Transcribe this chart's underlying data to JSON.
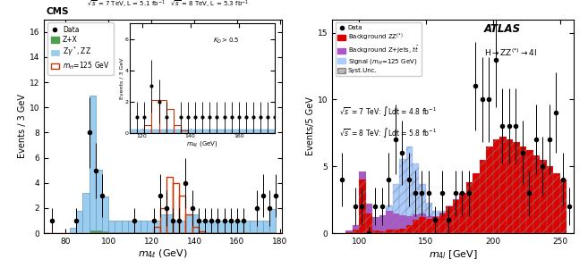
{
  "left_plot": {
    "ylabel": "Events / 3 GeV",
    "xlim": [
      70,
      181
    ],
    "ylim": [
      0,
      17
    ],
    "bin_edges": [
      70,
      73,
      76,
      79,
      82,
      85,
      88,
      91,
      94,
      97,
      100,
      103,
      106,
      109,
      112,
      115,
      118,
      121,
      124,
      127,
      130,
      133,
      136,
      139,
      142,
      145,
      148,
      151,
      154,
      157,
      160,
      163,
      166,
      169,
      172,
      175,
      178,
      181
    ],
    "zx_vals": [
      0,
      0,
      0,
      0,
      0,
      0,
      0,
      0.25,
      0.25,
      0.15,
      0.1,
      0.1,
      0.1,
      0.1,
      0.1,
      0.1,
      0.1,
      0.1,
      0.1,
      0.1,
      0.1,
      0.1,
      0.1,
      0.1,
      0.1,
      0.1,
      0.1,
      0.1,
      0.1,
      0.1,
      0.1,
      0.1,
      0.1,
      0.1,
      0.1,
      0.1,
      0.0
    ],
    "zz_vals": [
      0,
      0,
      0,
      0,
      0.4,
      1.8,
      3.2,
      10.7,
      4.8,
      2.8,
      0.9,
      0.9,
      0.9,
      0.9,
      0.9,
      0.9,
      0.9,
      0.9,
      1.4,
      1.4,
      0.9,
      0.9,
      1.4,
      1.4,
      0.9,
      0.9,
      0.9,
      0.9,
      0.9,
      0.9,
      0.9,
      0.9,
      0.9,
      0.9,
      0.9,
      1.8,
      0.0
    ],
    "signal_vals": [
      0,
      0,
      0,
      0,
      0,
      0,
      0,
      0,
      0,
      0,
      0,
      0,
      0,
      0,
      0,
      0,
      0,
      0.5,
      2.0,
      4.5,
      4.0,
      3.0,
      1.5,
      0.5,
      0.15,
      0,
      0,
      0,
      0,
      0,
      0,
      0,
      0,
      0,
      0,
      0,
      0
    ],
    "data_x": [
      73.5,
      85,
      91,
      94,
      97,
      112,
      121,
      124,
      127,
      130,
      133,
      136,
      139,
      142,
      145,
      148,
      151,
      154,
      157,
      160,
      163,
      169,
      172,
      175,
      178
    ],
    "data_y": [
      1,
      1,
      8,
      5,
      3,
      1,
      1,
      3,
      2,
      1,
      1,
      4,
      2,
      1,
      1,
      1,
      1,
      1,
      1,
      1,
      1,
      2,
      3,
      2,
      3
    ],
    "data_yerr": [
      1,
      1,
      2.8,
      2.2,
      1.7,
      1,
      1,
      1.7,
      1.4,
      1,
      1,
      2,
      1.4,
      1,
      1,
      1,
      1,
      1,
      1,
      1,
      1,
      1.4,
      1.7,
      1.4,
      1.7
    ],
    "color_zx": "#4d9e4d",
    "color_zz": "#99ccee",
    "color_signal": "#cc3300",
    "color_data": "black",
    "inset_bin_edges": [
      115,
      118,
      121,
      124,
      127,
      130,
      133,
      136,
      139,
      142,
      145,
      148,
      151,
      154,
      157,
      160,
      163,
      166,
      169,
      172,
      175
    ],
    "inset_zz": [
      0.2,
      0.2,
      0.2,
      0.2,
      0.2,
      0.2,
      0.2,
      0.2,
      0.2,
      0.2,
      0.2,
      0.2,
      0.2,
      0.2,
      0.2,
      0.2,
      0.2,
      0.2,
      0.2,
      0.2
    ],
    "inset_sig": [
      0,
      0,
      0.5,
      2.1,
      2.1,
      1.5,
      0.5,
      0.15,
      0,
      0,
      0,
      0,
      0,
      0,
      0,
      0,
      0,
      0,
      0,
      0
    ],
    "inset_data_x": [
      118,
      121,
      124,
      127,
      130,
      136,
      139,
      142,
      145,
      148,
      151,
      154,
      157,
      160,
      163,
      166,
      169,
      172,
      175
    ],
    "inset_data_y": [
      1,
      1,
      3,
      2,
      1,
      1,
      1,
      1,
      1,
      1,
      1,
      1,
      1,
      1,
      1,
      1,
      1,
      1,
      1
    ],
    "inset_data_yerr": [
      1,
      1,
      1.7,
      1.4,
      1,
      1,
      1,
      1,
      1,
      1,
      1,
      1,
      1,
      1,
      1,
      1,
      1,
      1,
      1
    ]
  },
  "right_plot": {
    "ylabel": "Events/5 GeV",
    "xlim": [
      80,
      260
    ],
    "ylim": [
      0,
      16
    ],
    "yticks": [
      0,
      5,
      10,
      15
    ],
    "bin_edges": [
      80,
      85,
      90,
      95,
      100,
      105,
      110,
      115,
      120,
      125,
      130,
      135,
      140,
      145,
      150,
      155,
      160,
      165,
      170,
      175,
      180,
      185,
      190,
      195,
      200,
      205,
      210,
      215,
      220,
      225,
      230,
      235,
      240,
      245,
      250,
      255,
      260
    ],
    "zzbkg_vals": [
      0,
      0,
      0.1,
      0.3,
      4.0,
      1.5,
      0.2,
      0.15,
      0.3,
      0.25,
      0.35,
      0.6,
      1.0,
      1.2,
      1.1,
      1.2,
      1.5,
      2.0,
      2.5,
      3.0,
      3.8,
      4.5,
      5.5,
      6.5,
      7.0,
      7.2,
      7.0,
      6.8,
      6.5,
      6.2,
      5.8,
      5.5,
      5.0,
      4.5,
      4.0,
      0.0
    ],
    "zjets_vals": [
      0,
      0,
      0.1,
      0.3,
      0.6,
      0.7,
      1.0,
      1.2,
      1.4,
      1.2,
      1.0,
      0.7,
      0.4,
      0.25,
      0.15,
      0.08,
      0.05,
      0.04,
      0.03,
      0.02,
      0.01,
      0.0,
      0.0,
      0.0,
      0.0,
      0.0,
      0.0,
      0.0,
      0.0,
      0.0,
      0.0,
      0.0,
      0.0,
      0.0,
      0.0,
      0.0
    ],
    "signal_vals": [
      0,
      0,
      0,
      0,
      0,
      0,
      0,
      0,
      0.4,
      2.2,
      4.2,
      5.2,
      3.8,
      2.2,
      1.0,
      0.4,
      0.15,
      0.05,
      0,
      0,
      0,
      0,
      0,
      0,
      0,
      0,
      0,
      0,
      0,
      0,
      0,
      0,
      0,
      0,
      0,
      0
    ],
    "data_x": [
      87,
      97,
      102,
      107,
      112,
      117,
      122,
      127,
      132,
      137,
      142,
      147,
      152,
      157,
      162,
      167,
      172,
      177,
      182,
      187,
      192,
      197,
      202,
      207,
      212,
      217,
      222,
      227,
      232,
      237,
      242,
      247,
      252,
      257
    ],
    "data_y": [
      4,
      2,
      2,
      0,
      2,
      2,
      4,
      7,
      6,
      4,
      3,
      3,
      3,
      1,
      3,
      1,
      3,
      3,
      3,
      11,
      10,
      10,
      13,
      8,
      8,
      8,
      6,
      3,
      7,
      5,
      7,
      9,
      4,
      2
    ],
    "data_yerr": [
      2,
      1.4,
      1.4,
      0.5,
      1.4,
      1.4,
      2,
      2.6,
      2.4,
      2,
      1.7,
      1.7,
      1.7,
      1,
      1.7,
      1,
      1.7,
      1.7,
      1.7,
      3.3,
      3.2,
      3.2,
      3.6,
      2.8,
      2.8,
      2.8,
      2.4,
      1.7,
      2.6,
      2.2,
      2.6,
      3,
      2,
      1.4
    ],
    "color_zzbkg": "#dd0000",
    "color_zjets": "#aa55cc",
    "color_signal": "#aaccff",
    "color_data": "black",
    "color_syst_face": "#bbbbbb",
    "color_syst_edge": "#888888"
  }
}
